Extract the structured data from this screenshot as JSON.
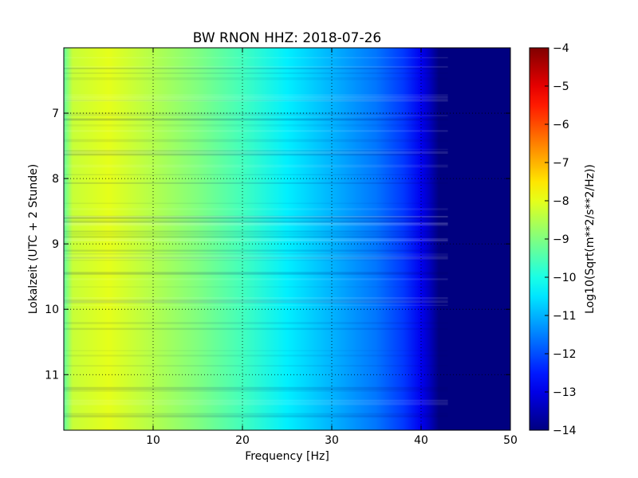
{
  "chart_data": {
    "type": "heatmap",
    "title": "BW RNON HHZ: 2018-07-26",
    "xlabel": "Frequency [Hz]",
    "ylabel": "Lokalzeit (UTC + 2 Stunde)",
    "xlim": [
      0,
      50
    ],
    "ylim": [
      6.0,
      11.85
    ],
    "y_inverted": true,
    "x_ticks": [
      10,
      20,
      30,
      40,
      50
    ],
    "y_ticks": [
      7,
      8,
      9,
      10,
      11
    ],
    "grid": true,
    "colorbar": {
      "label": "Log10(Sqrt(m**2/s**2/Hz))",
      "colormap": "jet",
      "vmin": -14,
      "vmax": -4,
      "ticks": [
        -4,
        -5,
        -6,
        -7,
        -8,
        -9,
        -10,
        -11,
        -12,
        -13,
        -14
      ]
    },
    "spectral_profile": {
      "frequency_hz": [
        0,
        1,
        5,
        10,
        15,
        20,
        25,
        30,
        35,
        38,
        40,
        41,
        42,
        50
      ],
      "log10_amplitude": [
        -9.3,
        -8.3,
        -8.0,
        -8.5,
        -9.0,
        -9.6,
        -10.4,
        -11.0,
        -11.6,
        -12.2,
        -12.9,
        -13.4,
        -14.0,
        -14.0
      ]
    }
  }
}
